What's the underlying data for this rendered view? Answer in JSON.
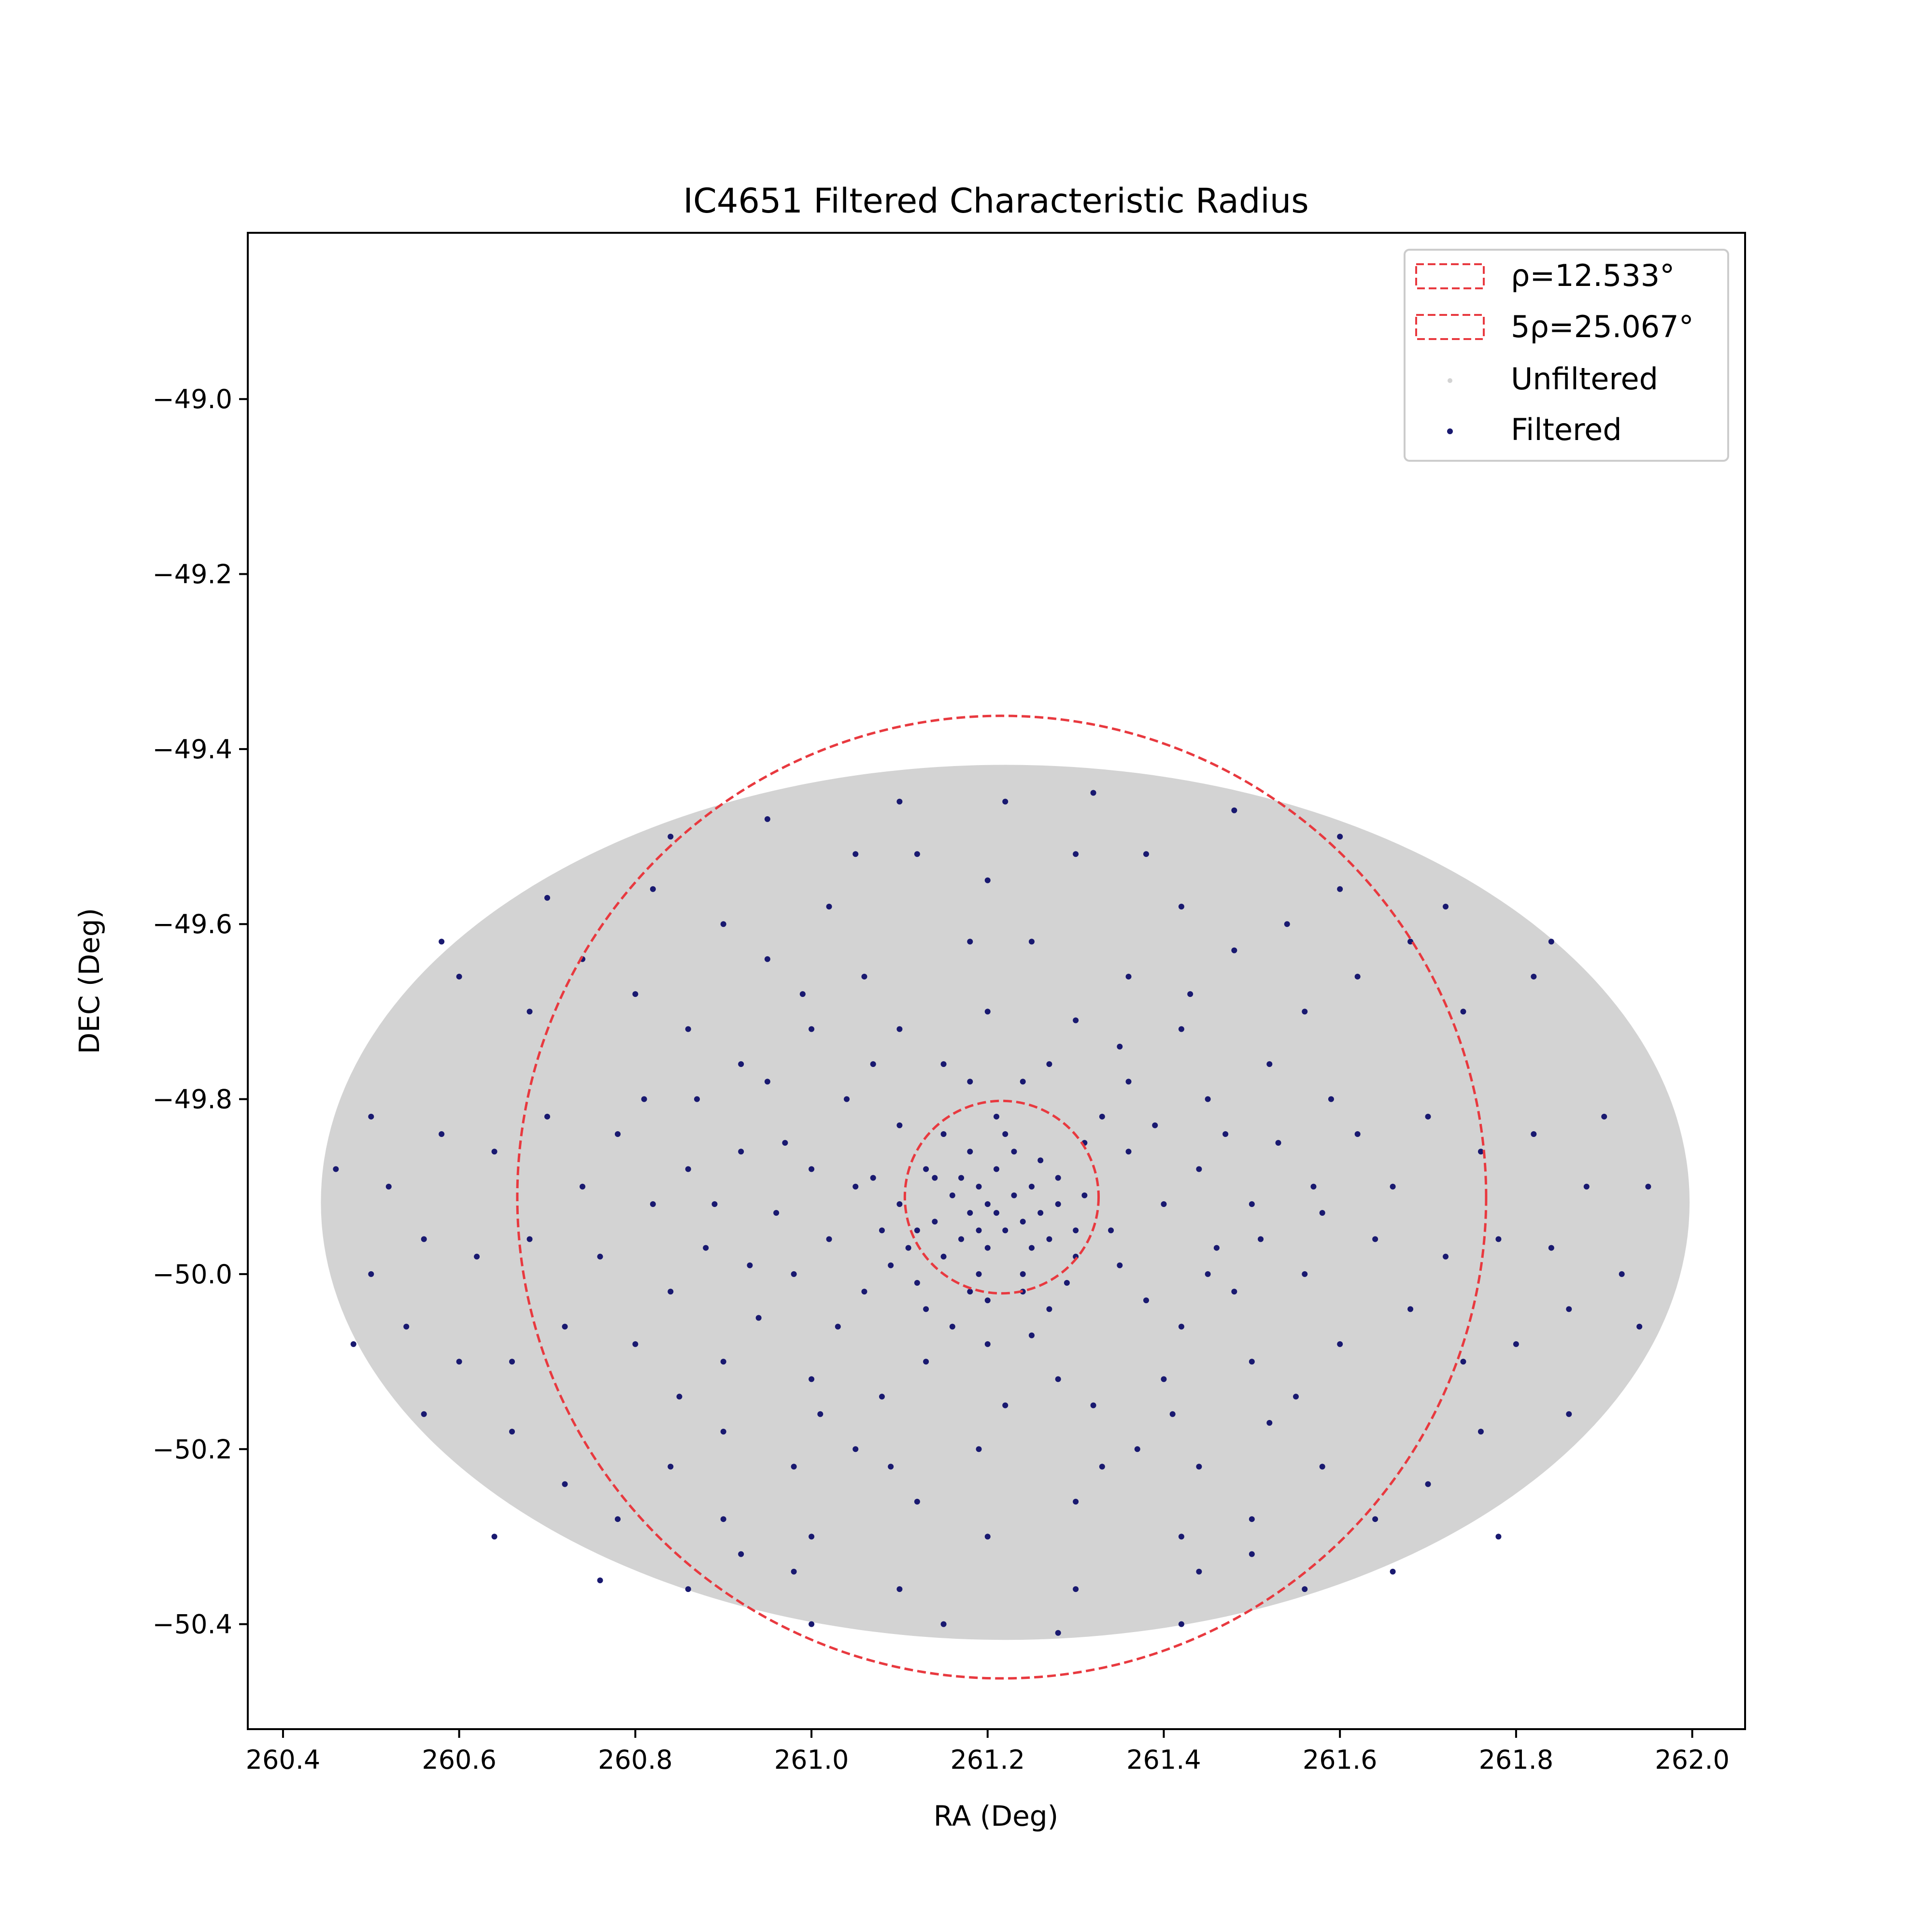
{
  "chart_data": {
    "type": "scatter",
    "title": "IC4651 Filtered Characteristic Radius",
    "xlabel": "RA (Deg)",
    "ylabel": "DEC (Deg)",
    "xlim": [
      260.36,
      262.06
    ],
    "ylim": [
      -50.52,
      -48.81
    ],
    "xticks": [
      260.4,
      260.6,
      260.8,
      261.0,
      261.2,
      261.4,
      261.6,
      261.8,
      262.0
    ],
    "xtick_labels": [
      "260.4",
      "260.6",
      "260.8",
      "261.0",
      "261.2",
      "261.4",
      "261.6",
      "261.8",
      "262.0"
    ],
    "yticks": [
      -49.0,
      -49.2,
      -49.4,
      -49.6,
      -49.8,
      -50.0,
      -50.2,
      -50.4
    ],
    "ytick_labels": [
      "−49.0",
      "−49.2",
      "−49.4",
      "−49.6",
      "−49.8",
      "−50.0",
      "−50.2",
      "−50.4"
    ],
    "grid": false,
    "legend_position": "top-right",
    "legend": [
      {
        "label": "ρ=12.533°",
        "kind": "dashed-patch"
      },
      {
        "label": "5ρ=25.067°",
        "kind": "dashed-patch"
      },
      {
        "label": "Unfiltered",
        "kind": "marker"
      },
      {
        "label": "Filtered",
        "kind": "marker"
      }
    ],
    "circles": [
      {
        "name": "ρ=12.533°",
        "center": [
          261.216,
          -49.912
        ],
        "radius_ra": 0.11,
        "radius_dec": 0.11,
        "color": "#e8393f"
      },
      {
        "name": "5ρ=25.067°",
        "center": [
          261.216,
          -49.912
        ],
        "radius_ra": 0.55,
        "radius_dec": 0.55,
        "color": "#e8393f"
      }
    ],
    "unfiltered_region": {
      "name": "Unfiltered",
      "shape": "ellipse",
      "center": [
        261.22,
        -49.918
      ],
      "radius_ra": 0.777,
      "radius_dec": 0.5,
      "color": "#d3d3d3"
    },
    "filtered_series": {
      "name": "Filtered",
      "color": "#191970",
      "points": [
        [
          261.2,
          -49.92
        ],
        [
          261.18,
          -49.93
        ],
        [
          261.22,
          -49.95
        ],
        [
          261.19,
          -49.9
        ],
        [
          261.24,
          -49.94
        ],
        [
          261.17,
          -49.96
        ],
        [
          261.21,
          -49.88
        ],
        [
          261.16,
          -49.91
        ],
        [
          261.25,
          -49.9
        ],
        [
          261.2,
          -49.97
        ],
        [
          261.23,
          -49.86
        ],
        [
          261.14,
          -49.94
        ],
        [
          261.27,
          -49.96
        ],
        [
          261.19,
          -50.0
        ],
        [
          261.13,
          -49.88
        ],
        [
          261.28,
          -49.92
        ],
        [
          261.22,
          -49.84
        ],
        [
          261.11,
          -49.97
        ],
        [
          261.3,
          -49.98
        ],
        [
          261.2,
          -50.03
        ],
        [
          261.15,
          -49.84
        ],
        [
          261.26,
          -49.87
        ],
        [
          261.1,
          -49.92
        ],
        [
          261.31,
          -49.91
        ],
        [
          261.24,
          -50.02
        ],
        [
          261.12,
          -50.01
        ],
        [
          261.18,
          -49.86
        ],
        [
          261.29,
          -50.01
        ],
        [
          261.08,
          -49.95
        ],
        [
          261.21,
          -49.82
        ],
        [
          261.05,
          -49.9
        ],
        [
          261.34,
          -49.95
        ],
        [
          261.2,
          -50.08
        ],
        [
          261.06,
          -50.02
        ],
        [
          261.36,
          -49.86
        ],
        [
          261.16,
          -50.06
        ],
        [
          261.02,
          -49.96
        ],
        [
          261.38,
          -50.03
        ],
        [
          261.25,
          -50.07
        ],
        [
          261.1,
          -49.83
        ],
        [
          261.33,
          -49.82
        ],
        [
          261.0,
          -49.88
        ],
        [
          261.4,
          -49.92
        ],
        [
          261.13,
          -50.1
        ],
        [
          261.28,
          -50.12
        ],
        [
          260.98,
          -50.0
        ],
        [
          261.42,
          -50.06
        ],
        [
          261.04,
          -49.8
        ],
        [
          261.36,
          -49.78
        ],
        [
          261.22,
          -50.15
        ],
        [
          260.96,
          -49.93
        ],
        [
          261.44,
          -49.88
        ],
        [
          261.08,
          -50.14
        ],
        [
          261.32,
          -50.15
        ],
        [
          261.15,
          -49.76
        ],
        [
          261.27,
          -49.76
        ],
        [
          260.94,
          -50.05
        ],
        [
          261.46,
          -49.97
        ],
        [
          261.0,
          -50.12
        ],
        [
          261.4,
          -50.12
        ],
        [
          260.92,
          -49.86
        ],
        [
          261.48,
          -50.02
        ],
        [
          261.19,
          -50.2
        ],
        [
          260.95,
          -49.78
        ],
        [
          261.45,
          -49.8
        ],
        [
          261.05,
          -50.2
        ],
        [
          261.37,
          -50.2
        ],
        [
          261.1,
          -49.72
        ],
        [
          261.3,
          -49.71
        ],
        [
          260.88,
          -49.97
        ],
        [
          261.5,
          -49.92
        ],
        [
          260.9,
          -50.1
        ],
        [
          261.5,
          -50.1
        ],
        [
          261.2,
          -49.7
        ],
        [
          260.86,
          -49.88
        ],
        [
          261.53,
          -49.85
        ],
        [
          261.0,
          -49.72
        ],
        [
          261.42,
          -49.72
        ],
        [
          260.98,
          -50.22
        ],
        [
          261.44,
          -50.22
        ],
        [
          260.84,
          -50.02
        ],
        [
          261.56,
          -50.0
        ],
        [
          261.12,
          -50.26
        ],
        [
          261.3,
          -50.26
        ],
        [
          260.82,
          -49.92
        ],
        [
          261.58,
          -49.93
        ],
        [
          260.92,
          -49.76
        ],
        [
          261.52,
          -49.76
        ],
        [
          260.9,
          -50.18
        ],
        [
          261.52,
          -50.17
        ],
        [
          261.2,
          -50.3
        ],
        [
          260.8,
          -50.08
        ],
        [
          261.6,
          -50.08
        ],
        [
          261.06,
          -49.66
        ],
        [
          261.36,
          -49.66
        ],
        [
          260.78,
          -49.84
        ],
        [
          261.62,
          -49.84
        ],
        [
          261.0,
          -50.3
        ],
        [
          261.42,
          -50.3
        ],
        [
          260.76,
          -49.98
        ],
        [
          261.64,
          -49.96
        ],
        [
          260.86,
          -49.72
        ],
        [
          261.56,
          -49.7
        ],
        [
          260.84,
          -50.22
        ],
        [
          261.58,
          -50.22
        ],
        [
          261.18,
          -49.62
        ],
        [
          261.25,
          -49.62
        ],
        [
          260.74,
          -49.9
        ],
        [
          261.66,
          -49.9
        ],
        [
          260.72,
          -50.06
        ],
        [
          261.68,
          -50.04
        ],
        [
          260.95,
          -49.64
        ],
        [
          261.48,
          -49.63
        ],
        [
          260.92,
          -50.32
        ],
        [
          261.5,
          -50.32
        ],
        [
          261.1,
          -50.36
        ],
        [
          261.3,
          -50.36
        ],
        [
          260.7,
          -49.82
        ],
        [
          261.7,
          -49.82
        ],
        [
          260.68,
          -49.96
        ],
        [
          261.72,
          -49.98
        ],
        [
          260.8,
          -49.68
        ],
        [
          261.62,
          -49.66
        ],
        [
          260.78,
          -50.28
        ],
        [
          261.64,
          -50.28
        ],
        [
          260.66,
          -50.1
        ],
        [
          261.74,
          -50.1
        ],
        [
          261.02,
          -49.58
        ],
        [
          261.42,
          -49.58
        ],
        [
          260.64,
          -49.86
        ],
        [
          261.76,
          -49.86
        ],
        [
          260.9,
          -49.6
        ],
        [
          261.54,
          -49.6
        ],
        [
          261.2,
          -49.55
        ],
        [
          260.86,
          -50.36
        ],
        [
          261.56,
          -50.36
        ],
        [
          260.62,
          -49.98
        ],
        [
          261.78,
          -49.96
        ],
        [
          260.74,
          -49.64
        ],
        [
          261.68,
          -49.62
        ],
        [
          260.72,
          -50.24
        ],
        [
          261.7,
          -50.24
        ],
        [
          260.6,
          -50.1
        ],
        [
          261.8,
          -50.08
        ],
        [
          261.12,
          -49.52
        ],
        [
          261.3,
          -49.52
        ],
        [
          260.58,
          -49.84
        ],
        [
          261.82,
          -49.84
        ],
        [
          261.0,
          -50.4
        ],
        [
          261.42,
          -50.4
        ],
        [
          260.56,
          -49.96
        ],
        [
          261.84,
          -49.97
        ],
        [
          260.82,
          -49.56
        ],
        [
          261.6,
          -49.56
        ],
        [
          260.68,
          -49.7
        ],
        [
          261.74,
          -49.7
        ],
        [
          260.66,
          -50.18
        ],
        [
          261.76,
          -50.18
        ],
        [
          260.54,
          -50.06
        ],
        [
          261.86,
          -50.04
        ],
        [
          261.22,
          -49.46
        ],
        [
          260.95,
          -49.48
        ],
        [
          261.48,
          -49.47
        ],
        [
          260.52,
          -49.9
        ],
        [
          261.88,
          -49.9
        ],
        [
          260.7,
          -49.57
        ],
        [
          261.72,
          -49.58
        ],
        [
          260.5,
          -49.82
        ],
        [
          261.9,
          -49.82
        ],
        [
          260.64,
          -50.3
        ],
        [
          261.78,
          -50.3
        ],
        [
          260.5,
          -50.0
        ],
        [
          261.92,
          -50.0
        ],
        [
          260.6,
          -49.66
        ],
        [
          261.82,
          -49.66
        ],
        [
          260.48,
          -50.08
        ],
        [
          261.94,
          -50.06
        ],
        [
          260.46,
          -49.88
        ],
        [
          261.95,
          -49.9
        ],
        [
          261.1,
          -49.46
        ],
        [
          261.32,
          -49.45
        ],
        [
          260.56,
          -50.16
        ],
        [
          261.86,
          -50.16
        ],
        [
          260.58,
          -49.62
        ],
        [
          261.84,
          -49.62
        ],
        [
          260.9,
          -50.28
        ],
        [
          261.5,
          -50.28
        ],
        [
          260.76,
          -50.35
        ],
        [
          261.66,
          -50.34
        ],
        [
          261.05,
          -49.52
        ],
        [
          261.38,
          -49.52
        ],
        [
          260.98,
          -50.34
        ],
        [
          261.44,
          -50.34
        ],
        [
          261.15,
          -50.4
        ],
        [
          261.28,
          -50.41
        ],
        [
          260.84,
          -49.5
        ],
        [
          261.6,
          -49.5
        ],
        [
          261.18,
          -49.78
        ],
        [
          261.24,
          -49.78
        ],
        [
          261.13,
          -50.04
        ],
        [
          261.27,
          -50.04
        ],
        [
          261.09,
          -49.99
        ],
        [
          261.31,
          -49.85
        ],
        [
          261.17,
          -49.89
        ],
        [
          261.25,
          -49.97
        ],
        [
          261.21,
          -49.93
        ],
        [
          261.19,
          -49.95
        ],
        [
          261.23,
          -49.91
        ],
        [
          261.15,
          -49.98
        ],
        [
          261.26,
          -49.93
        ],
        [
          261.14,
          -49.89
        ],
        [
          261.28,
          -49.89
        ],
        [
          261.12,
          -49.95
        ],
        [
          261.3,
          -49.95
        ],
        [
          261.18,
          -50.02
        ],
        [
          261.24,
          -50.0
        ],
        [
          261.07,
          -49.89
        ],
        [
          261.35,
          -49.99
        ],
        [
          261.03,
          -50.06
        ],
        [
          261.39,
          -49.83
        ],
        [
          260.97,
          -49.85
        ],
        [
          261.45,
          -50.0
        ],
        [
          260.93,
          -49.99
        ],
        [
          261.47,
          -49.84
        ],
        [
          260.89,
          -49.92
        ],
        [
          261.51,
          -49.96
        ],
        [
          261.01,
          -50.16
        ],
        [
          261.41,
          -50.16
        ],
        [
          261.07,
          -49.76
        ],
        [
          261.35,
          -49.74
        ],
        [
          260.99,
          -49.68
        ],
        [
          261.43,
          -49.68
        ],
        [
          260.85,
          -50.14
        ],
        [
          261.55,
          -50.14
        ],
        [
          260.81,
          -49.8
        ],
        [
          261.59,
          -49.8
        ],
        [
          261.09,
          -50.22
        ],
        [
          261.33,
          -50.22
        ],
        [
          260.87,
          -49.8
        ],
        [
          261.57,
          -49.9
        ]
      ]
    }
  }
}
